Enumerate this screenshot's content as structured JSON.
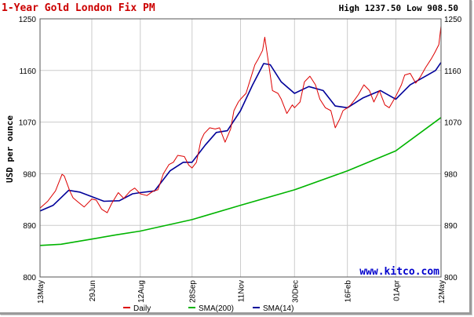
{
  "chart_data": {
    "type": "line",
    "title": "1-Year Gold London Fix PM",
    "stats": "High 1237.50 Low 908.50",
    "ylabel": "USD per ounce",
    "watermark": "www.kitco.com",
    "ylim": [
      800,
      1250
    ],
    "y_ticks": [
      800,
      890,
      980,
      1070,
      1160,
      1250
    ],
    "x_tick_labels": [
      "13May",
      "29Jun",
      "12Aug",
      "28Sep",
      "11Nov",
      "30Dec",
      "16Feb",
      "01Apr",
      "12May"
    ],
    "x_tick_dates": [
      "2009-05-13",
      "2009-06-29",
      "2009-08-12",
      "2009-09-28",
      "2009-11-11",
      "2009-12-30",
      "2010-02-16",
      "2010-04-01",
      "2010-05-12"
    ],
    "grid": true,
    "legend_position": "bottom",
    "colors": {
      "title": "#cc0000",
      "daily": "#dd0000",
      "sma200": "#00b400",
      "sma14": "#000099",
      "grid": "#cccccc",
      "watermark": "#0000cc"
    },
    "series": [
      {
        "name": "Daily",
        "color": "#dd0000",
        "points": [
          [
            "2009-05-13",
            920
          ],
          [
            "2009-05-20",
            932
          ],
          [
            "2009-05-27",
            950
          ],
          [
            "2009-06-02",
            979
          ],
          [
            "2009-06-04",
            976
          ],
          [
            "2009-06-09",
            950
          ],
          [
            "2009-06-12",
            938
          ],
          [
            "2009-06-17",
            930
          ],
          [
            "2009-06-22",
            922
          ],
          [
            "2009-06-29",
            936
          ],
          [
            "2009-07-03",
            934
          ],
          [
            "2009-07-08",
            918
          ],
          [
            "2009-07-13",
            912
          ],
          [
            "2009-07-17",
            928
          ],
          [
            "2009-07-23",
            947
          ],
          [
            "2009-07-28",
            937
          ],
          [
            "2009-08-03",
            950
          ],
          [
            "2009-08-07",
            955
          ],
          [
            "2009-08-12",
            945
          ],
          [
            "2009-08-18",
            942
          ],
          [
            "2009-08-24",
            950
          ],
          [
            "2009-08-28",
            952
          ],
          [
            "2009-09-02",
            980
          ],
          [
            "2009-09-07",
            996
          ],
          [
            "2009-09-11",
            1000
          ],
          [
            "2009-09-15",
            1012
          ],
          [
            "2009-09-21",
            1010
          ],
          [
            "2009-09-25",
            995
          ],
          [
            "2009-09-28",
            990
          ],
          [
            "2009-10-02",
            1000
          ],
          [
            "2009-10-06",
            1038
          ],
          [
            "2009-10-09",
            1050
          ],
          [
            "2009-10-14",
            1060
          ],
          [
            "2009-10-19",
            1058
          ],
          [
            "2009-10-23",
            1060
          ],
          [
            "2009-10-28",
            1035
          ],
          [
            "2009-11-02",
            1058
          ],
          [
            "2009-11-05",
            1090
          ],
          [
            "2009-11-09",
            1105
          ],
          [
            "2009-11-11",
            1110
          ],
          [
            "2009-11-16",
            1120
          ],
          [
            "2009-11-20",
            1145
          ],
          [
            "2009-11-24",
            1170
          ],
          [
            "2009-11-27",
            1180
          ],
          [
            "2009-12-01",
            1195
          ],
          [
            "2009-12-03",
            1218
          ],
          [
            "2009-12-07",
            1165
          ],
          [
            "2009-12-10",
            1125
          ],
          [
            "2009-12-15",
            1120
          ],
          [
            "2009-12-18",
            1110
          ],
          [
            "2009-12-23",
            1085
          ],
          [
            "2009-12-28",
            1100
          ],
          [
            "2009-12-30",
            1095
          ],
          [
            "2010-01-04",
            1105
          ],
          [
            "2010-01-08",
            1140
          ],
          [
            "2010-01-13",
            1150
          ],
          [
            "2010-01-18",
            1135
          ],
          [
            "2010-01-22",
            1110
          ],
          [
            "2010-01-27",
            1095
          ],
          [
            "2010-02-01",
            1090
          ],
          [
            "2010-02-05",
            1060
          ],
          [
            "2010-02-09",
            1075
          ],
          [
            "2010-02-12",
            1090
          ],
          [
            "2010-02-16",
            1095
          ],
          [
            "2010-02-19",
            1100
          ],
          [
            "2010-02-23",
            1110
          ],
          [
            "2010-02-26",
            1118
          ],
          [
            "2010-03-03",
            1135
          ],
          [
            "2010-03-08",
            1125
          ],
          [
            "2010-03-12",
            1105
          ],
          [
            "2010-03-17",
            1125
          ],
          [
            "2010-03-22",
            1100
          ],
          [
            "2010-03-26",
            1095
          ],
          [
            "2010-04-01",
            1115
          ],
          [
            "2010-04-06",
            1135
          ],
          [
            "2010-04-09",
            1152
          ],
          [
            "2010-04-14",
            1155
          ],
          [
            "2010-04-19",
            1138
          ],
          [
            "2010-04-23",
            1148
          ],
          [
            "2010-04-28",
            1165
          ],
          [
            "2010-05-03",
            1180
          ],
          [
            "2010-05-06",
            1190
          ],
          [
            "2010-05-10",
            1205
          ],
          [
            "2010-05-12",
            1237.5
          ]
        ]
      },
      {
        "name": "SMA(200)",
        "color": "#00b400",
        "points": [
          [
            "2009-05-13",
            855
          ],
          [
            "2009-06-01",
            857
          ],
          [
            "2009-06-29",
            866
          ],
          [
            "2009-07-20",
            873
          ],
          [
            "2009-08-12",
            880
          ],
          [
            "2009-09-28",
            900
          ],
          [
            "2009-11-11",
            925
          ],
          [
            "2009-12-30",
            952
          ],
          [
            "2010-02-16",
            985
          ],
          [
            "2010-04-01",
            1020
          ],
          [
            "2010-05-12",
            1078
          ]
        ]
      },
      {
        "name": "SMA(14)",
        "color": "#000099",
        "points": [
          [
            "2009-05-13",
            915
          ],
          [
            "2009-05-25",
            925
          ],
          [
            "2009-06-08",
            951
          ],
          [
            "2009-06-18",
            948
          ],
          [
            "2009-06-29",
            940
          ],
          [
            "2009-07-10",
            932
          ],
          [
            "2009-07-24",
            933
          ],
          [
            "2009-08-05",
            945
          ],
          [
            "2009-08-12",
            947
          ],
          [
            "2009-08-25",
            950
          ],
          [
            "2009-09-08",
            985
          ],
          [
            "2009-09-20",
            1000
          ],
          [
            "2009-09-28",
            1000
          ],
          [
            "2009-10-10",
            1030
          ],
          [
            "2009-10-20",
            1052
          ],
          [
            "2009-10-30",
            1055
          ],
          [
            "2009-11-11",
            1090
          ],
          [
            "2009-11-22",
            1135
          ],
          [
            "2009-12-02",
            1172
          ],
          [
            "2009-12-08",
            1170
          ],
          [
            "2009-12-18",
            1140
          ],
          [
            "2009-12-30",
            1120
          ],
          [
            "2010-01-12",
            1132
          ],
          [
            "2010-01-25",
            1125
          ],
          [
            "2010-02-05",
            1098
          ],
          [
            "2010-02-16",
            1095
          ],
          [
            "2010-03-02",
            1112
          ],
          [
            "2010-03-18",
            1125
          ],
          [
            "2010-04-01",
            1110
          ],
          [
            "2010-04-14",
            1135
          ],
          [
            "2010-04-28",
            1150
          ],
          [
            "2010-05-07",
            1160
          ],
          [
            "2010-05-12",
            1174
          ]
        ]
      }
    ]
  }
}
